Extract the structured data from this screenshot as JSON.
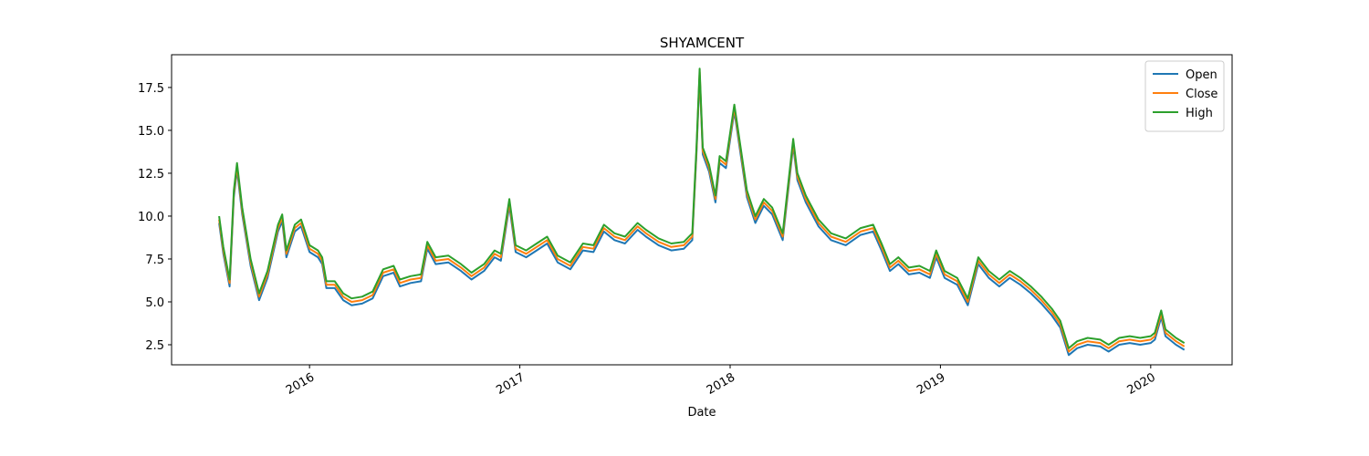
{
  "chart_data": {
    "type": "line",
    "title": "SHYAMCENT",
    "xlabel": "Date",
    "legend": "upper right",
    "x": [
      2015.57,
      2015.59,
      2015.62,
      2015.64,
      2015.655,
      2015.68,
      2015.72,
      2015.76,
      2015.8,
      2015.85,
      2015.87,
      2015.89,
      2015.93,
      2015.96,
      2016.0,
      2016.04,
      2016.06,
      2016.08,
      2016.12,
      2016.16,
      2016.2,
      2016.25,
      2016.3,
      2016.35,
      2016.4,
      2016.43,
      2016.48,
      2016.53,
      2016.56,
      2016.6,
      2016.66,
      2016.72,
      2016.77,
      2016.83,
      2016.88,
      2016.91,
      2016.95,
      2016.98,
      2017.03,
      2017.08,
      2017.13,
      2017.18,
      2017.24,
      2017.3,
      2017.35,
      2017.4,
      2017.45,
      2017.5,
      2017.56,
      2017.6,
      2017.66,
      2017.72,
      2017.78,
      2017.82,
      2017.84,
      2017.855,
      2017.87,
      2017.9,
      2017.93,
      2017.95,
      2017.98,
      2018.02,
      2018.05,
      2018.08,
      2018.12,
      2018.16,
      2018.2,
      2018.25,
      2018.3,
      2018.32,
      2018.36,
      2018.42,
      2018.48,
      2018.55,
      2018.62,
      2018.68,
      2018.72,
      2018.76,
      2018.8,
      2018.85,
      2018.9,
      2018.95,
      2018.98,
      2019.02,
      2019.08,
      2019.13,
      2019.18,
      2019.23,
      2019.28,
      2019.33,
      2019.38,
      2019.43,
      2019.48,
      2019.53,
      2019.57,
      2019.61,
      2019.65,
      2019.7,
      2019.76,
      2019.8,
      2019.85,
      2019.9,
      2019.95,
      2020.0,
      2020.02,
      2020.05,
      2020.07,
      2020.12,
      2020.16
    ],
    "series": [
      {
        "name": "Open",
        "color": "#1f77b4",
        "values": [
          9.6,
          7.8,
          5.9,
          11.1,
          12.7,
          10.1,
          7.1,
          5.1,
          6.4,
          9.1,
          9.7,
          7.6,
          9.1,
          9.4,
          7.9,
          7.6,
          7.2,
          5.8,
          5.8,
          5.1,
          4.8,
          4.9,
          5.2,
          6.5,
          6.7,
          5.9,
          6.1,
          6.2,
          8.1,
          7.2,
          7.3,
          6.8,
          6.3,
          6.8,
          7.6,
          7.4,
          10.6,
          7.9,
          7.6,
          8.0,
          8.4,
          7.3,
          6.9,
          8.0,
          7.9,
          9.1,
          8.6,
          8.4,
          9.2,
          8.8,
          8.3,
          8.0,
          8.1,
          8.6,
          13.6,
          18.2,
          13.6,
          12.6,
          10.8,
          13.1,
          12.8,
          16.1,
          13.6,
          11.1,
          9.6,
          10.6,
          10.1,
          8.6,
          14.1,
          12.1,
          10.8,
          9.4,
          8.6,
          8.3,
          8.9,
          9.1,
          8.0,
          6.8,
          7.2,
          6.6,
          6.7,
          6.4,
          7.6,
          6.4,
          6.0,
          4.8,
          7.2,
          6.4,
          5.9,
          6.4,
          6.0,
          5.5,
          4.9,
          4.2,
          3.5,
          1.9,
          2.3,
          2.5,
          2.4,
          2.1,
          2.5,
          2.6,
          2.5,
          2.6,
          2.8,
          4.1,
          3.0,
          2.5,
          2.2
        ]
      },
      {
        "name": "Close",
        "color": "#ff7f0e",
        "values": [
          9.8,
          8.0,
          6.1,
          11.3,
          12.9,
          10.3,
          7.3,
          5.3,
          6.6,
          9.3,
          9.9,
          7.8,
          9.3,
          9.6,
          8.1,
          7.8,
          7.4,
          6.0,
          6.0,
          5.3,
          5.0,
          5.1,
          5.4,
          6.7,
          6.9,
          6.1,
          6.3,
          6.4,
          8.3,
          7.4,
          7.5,
          7.0,
          6.5,
          7.0,
          7.8,
          7.6,
          10.8,
          8.1,
          7.8,
          8.2,
          8.6,
          7.5,
          7.1,
          8.2,
          8.1,
          9.3,
          8.8,
          8.6,
          9.4,
          9.0,
          8.5,
          8.2,
          8.3,
          8.8,
          13.8,
          18.4,
          13.8,
          12.8,
          11.0,
          13.3,
          13.0,
          16.3,
          13.8,
          11.3,
          9.8,
          10.8,
          10.3,
          8.8,
          14.3,
          12.3,
          11.0,
          9.6,
          8.8,
          8.5,
          9.1,
          9.3,
          8.2,
          7.0,
          7.4,
          6.8,
          6.9,
          6.6,
          7.8,
          6.6,
          6.2,
          5.0,
          7.4,
          6.6,
          6.1,
          6.6,
          6.2,
          5.7,
          5.1,
          4.4,
          3.7,
          2.1,
          2.5,
          2.7,
          2.6,
          2.3,
          2.7,
          2.8,
          2.7,
          2.8,
          3.0,
          4.3,
          3.2,
          2.7,
          2.4
        ]
      },
      {
        "name": "High",
        "color": "#2ca02c",
        "values": [
          10.0,
          8.2,
          6.3,
          11.5,
          13.1,
          10.5,
          7.5,
          5.5,
          6.8,
          9.5,
          10.1,
          8.0,
          9.5,
          9.8,
          8.3,
          8.0,
          7.6,
          6.2,
          6.2,
          5.5,
          5.2,
          5.3,
          5.6,
          6.9,
          7.1,
          6.3,
          6.5,
          6.6,
          8.5,
          7.6,
          7.7,
          7.2,
          6.7,
          7.2,
          8.0,
          7.8,
          11.0,
          8.3,
          8.0,
          8.4,
          8.8,
          7.7,
          7.3,
          8.4,
          8.3,
          9.5,
          9.0,
          8.8,
          9.6,
          9.2,
          8.7,
          8.4,
          8.5,
          9.0,
          14.0,
          18.6,
          14.0,
          13.0,
          11.2,
          13.5,
          13.2,
          16.5,
          14.0,
          11.5,
          10.0,
          11.0,
          10.5,
          9.0,
          14.5,
          12.5,
          11.2,
          9.8,
          9.0,
          8.7,
          9.3,
          9.5,
          8.4,
          7.2,
          7.6,
          7.0,
          7.1,
          6.8,
          8.0,
          6.8,
          6.4,
          5.2,
          7.6,
          6.8,
          6.3,
          6.8,
          6.4,
          5.9,
          5.3,
          4.6,
          3.9,
          2.3,
          2.7,
          2.9,
          2.8,
          2.5,
          2.9,
          3.0,
          2.9,
          3.0,
          3.2,
          4.5,
          3.4,
          2.9,
          2.6
        ]
      }
    ],
    "xlim": [
      2015.344,
      2020.387
    ],
    "xticks": [
      2016,
      2017,
      2018,
      2019,
      2020
    ],
    "ylim": [
      1.33,
      19.41
    ],
    "yticks": [
      {
        "value": 2.5,
        "label": "2.5"
      },
      {
        "value": 5.0,
        "label": "5.0"
      },
      {
        "value": 7.5,
        "label": "7.5"
      },
      {
        "value": 10.0,
        "label": "10.0"
      },
      {
        "value": 12.5,
        "label": "12.5"
      },
      {
        "value": 15.0,
        "label": "15.0"
      },
      {
        "value": 17.5,
        "label": "17.5"
      }
    ]
  }
}
